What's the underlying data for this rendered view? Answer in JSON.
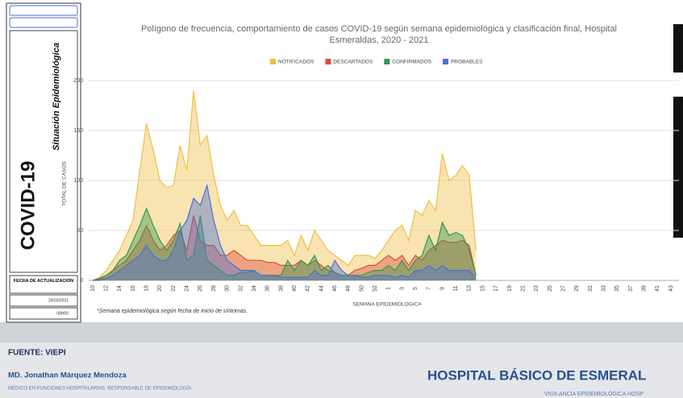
{
  "sidebar": {
    "title": "COVID-19",
    "subtitle": "Situación Epidemiológica",
    "update_label": "FECHA DE ACTUALIZACIÓN",
    "date": "26/03/2021",
    "time": "08H00"
  },
  "chart_data": {
    "type": "area",
    "title": [
      "Polígono de frecuencia, comportamiento de casos COVID-19 según semana epidemiológica y clasificación final, Hospital",
      "Esmeraldas, 2020 - 2021"
    ],
    "x_label": "SEMANA EPIDEMIOLOGICA",
    "y_label": "TOTAL DE CASOS",
    "note": "*Semana epidemiológica según fecha de inicio de síntomas.",
    "categories": [
      "10",
      null,
      "12",
      null,
      "14",
      null,
      "16",
      null,
      "18",
      null,
      "20",
      null,
      "22",
      null,
      "24",
      null,
      "26",
      null,
      "28",
      null,
      "30",
      null,
      "32",
      null,
      "34",
      null,
      "36",
      null,
      "38",
      null,
      "40",
      null,
      "42",
      null,
      "44",
      null,
      "46",
      null,
      "48",
      null,
      "50",
      null,
      "52",
      null,
      "1",
      null,
      "3",
      null,
      "5",
      null,
      "7",
      null,
      "9",
      null,
      "11",
      null,
      "13",
      null,
      "15",
      null,
      "17",
      null,
      "19",
      null,
      "21",
      null,
      "23",
      null,
      "25",
      null,
      "27",
      null,
      "29",
      null,
      "31",
      null,
      "33",
      null,
      "35",
      null,
      "37",
      null,
      "39",
      null,
      "41",
      null,
      "43"
    ],
    "series": [
      {
        "name": "NOTIFICADOS",
        "color": "#f0be45",
        "values": [
          0,
          3,
          10,
          20,
          30,
          45,
          60,
          110,
          157,
          130,
          100,
          93,
          95,
          135,
          110,
          190,
          135,
          145,
          105,
          75,
          60,
          70,
          55,
          55,
          45,
          35,
          35,
          35,
          35,
          40,
          25,
          45,
          30,
          50,
          40,
          30,
          25,
          20,
          15,
          25,
          25,
          25,
          22,
          30,
          40,
          50,
          55,
          40,
          70,
          65,
          80,
          70,
          127,
          100,
          105,
          115,
          105,
          30,
          null,
          null,
          null,
          null,
          null,
          null,
          null,
          null,
          null,
          null,
          null,
          null,
          null,
          null,
          null,
          null,
          null,
          null,
          null,
          null,
          null,
          null,
          null,
          null,
          null,
          null,
          null,
          null,
          null
        ]
      },
      {
        "name": "DESCARTADOS",
        "color": "#de4a3c",
        "values": [
          0,
          1,
          5,
          10,
          15,
          20,
          30,
          40,
          55,
          40,
          30,
          35,
          45,
          50,
          30,
          65,
          40,
          35,
          35,
          25,
          25,
          30,
          25,
          20,
          20,
          20,
          18,
          18,
          15,
          15,
          15,
          20,
          15,
          20,
          15,
          10,
          8,
          5,
          5,
          10,
          12,
          15,
          15,
          20,
          25,
          20,
          25,
          15,
          25,
          20,
          30,
          35,
          40,
          38,
          38,
          40,
          35,
          5,
          null,
          null,
          null,
          null,
          null,
          null,
          null,
          null,
          null,
          null,
          null,
          null,
          null,
          null,
          null,
          null,
          null,
          null,
          null,
          null,
          null,
          null,
          null,
          null,
          null,
          null,
          null,
          null,
          null
        ]
      },
      {
        "name": "CONFIRMADOS",
        "color": "#2f9a4c",
        "values": [
          0,
          2,
          5,
          10,
          20,
          25,
          40,
          55,
          72,
          55,
          40,
          30,
          40,
          57,
          20,
          25,
          65,
          20,
          15,
          10,
          5,
          5,
          8,
          8,
          10,
          5,
          5,
          5,
          5,
          20,
          10,
          20,
          15,
          25,
          10,
          15,
          8,
          5,
          5,
          5,
          5,
          8,
          10,
          10,
          15,
          10,
          20,
          10,
          20,
          25,
          45,
          30,
          58,
          45,
          48,
          45,
          30,
          5,
          null,
          null,
          null,
          null,
          null,
          null,
          null,
          null,
          null,
          null,
          null,
          null,
          null,
          null,
          null,
          null,
          null,
          null,
          null,
          null,
          null,
          null,
          null,
          null,
          null,
          null,
          null,
          null,
          null
        ]
      },
      {
        "name": "PROBABLES",
        "color": "#4a6fd6",
        "values": [
          0,
          0,
          2,
          5,
          10,
          15,
          20,
          25,
          35,
          25,
          20,
          20,
          30,
          50,
          60,
          82,
          75,
          95,
          60,
          35,
          20,
          15,
          10,
          10,
          10,
          5,
          5,
          5,
          3,
          3,
          3,
          3,
          3,
          10,
          5,
          5,
          20,
          10,
          5,
          5,
          3,
          3,
          5,
          5,
          5,
          3,
          5,
          3,
          10,
          10,
          15,
          10,
          15,
          10,
          10,
          10,
          10,
          2,
          null,
          null,
          null,
          null,
          null,
          null,
          null,
          null,
          null,
          null,
          null,
          null,
          null,
          null,
          null,
          null,
          null,
          null,
          null,
          null,
          null,
          null,
          null,
          null,
          null,
          null,
          null,
          null,
          null
        ]
      }
    ],
    "ylim": [
      0,
      200
    ],
    "yticks": [
      0,
      50,
      100,
      150,
      200
    ],
    "grid": true,
    "legend": "top"
  },
  "footer": {
    "source": "FUENTE: VIEPI",
    "author": "MD. Jonathan Márquez Mendoza",
    "role": "MÉDICO EN FUNCIONES HOSPITALARIAS, RESPONSABLE DE EPIDEMIOLOGÍA",
    "hospital": "HOSPITAL BÁSICO DE ESMERAL",
    "tagline": "VIGILANCIA EPIDEMIOLÓGICA HOSP"
  }
}
